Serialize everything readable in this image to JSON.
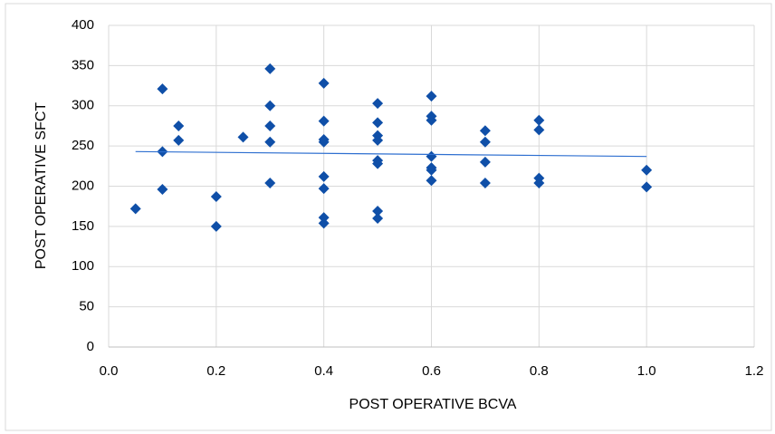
{
  "chart_data": {
    "type": "scatter",
    "x_label": "POST OPERATIVE BCVA",
    "y_label": "POST OPERATIVE SFCT",
    "x": [
      0.05,
      0.1,
      0.1,
      0.1,
      0.13,
      0.13,
      0.2,
      0.2,
      0.25,
      0.3,
      0.3,
      0.3,
      0.3,
      0.3,
      0.4,
      0.4,
      0.4,
      0.4,
      0.4,
      0.4,
      0.4,
      0.4,
      0.5,
      0.5,
      0.5,
      0.5,
      0.5,
      0.5,
      0.5,
      0.5,
      0.6,
      0.6,
      0.6,
      0.6,
      0.6,
      0.6,
      0.6,
      0.7,
      0.7,
      0.7,
      0.7,
      0.8,
      0.8,
      0.8,
      0.8,
      1.0,
      1.0
    ],
    "values": [
      172,
      321,
      243,
      196,
      275,
      257,
      187,
      150,
      261,
      346,
      300,
      275,
      255,
      204,
      328,
      281,
      258,
      255,
      212,
      197,
      161,
      154,
      303,
      279,
      263,
      257,
      232,
      228,
      169,
      160,
      312,
      287,
      282,
      237,
      223,
      220,
      207,
      269,
      255,
      230,
      204,
      282,
      270,
      210,
      204,
      220,
      199
    ],
    "color": "#0f4fa8",
    "trendline": {
      "x": [
        0.05,
        1.0
      ],
      "y": [
        243,
        237
      ],
      "color": "#2e6fd0"
    },
    "xlim": [
      0,
      1.2
    ],
    "xticks": [
      {
        "value": 0,
        "label": "0.0"
      },
      0.2,
      0.4,
      0.6,
      0.8,
      {
        "value": 1,
        "label": "1.0"
      },
      1.2
    ],
    "ylim": [
      0,
      400
    ],
    "yticks": [
      0,
      50,
      100,
      150,
      200,
      250,
      300,
      350,
      400
    ],
    "grid": true
  }
}
